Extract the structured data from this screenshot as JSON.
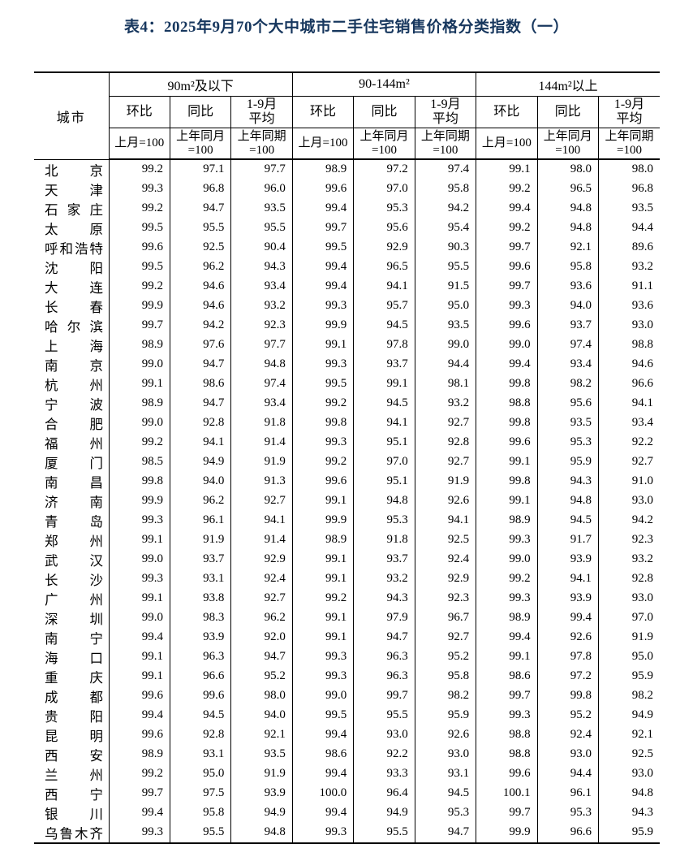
{
  "title": "表4：2025年9月70个大中城市二手住宅销售价格分类指数（一）",
  "table": {
    "city_header": "城市",
    "groups": [
      {
        "label": "90m²及以下"
      },
      {
        "label": "90-144m²"
      },
      {
        "label": "144m²以上"
      }
    ],
    "metric_headers": [
      "环比",
      "同比",
      "1-9月\n平均"
    ],
    "base_headers": [
      "上月=100",
      "上年同月\n=100",
      "上年同期\n=100"
    ],
    "rows": [
      {
        "city": "北京",
        "values": [
          "99.2",
          "97.1",
          "97.7",
          "98.9",
          "97.2",
          "97.4",
          "99.1",
          "98.0",
          "98.0"
        ]
      },
      {
        "city": "天津",
        "values": [
          "99.3",
          "96.8",
          "96.0",
          "99.6",
          "97.0",
          "95.8",
          "99.2",
          "96.5",
          "96.8"
        ]
      },
      {
        "city": "石家庄",
        "values": [
          "99.2",
          "94.7",
          "93.5",
          "99.4",
          "95.3",
          "94.2",
          "99.4",
          "94.8",
          "93.5"
        ]
      },
      {
        "city": "太原",
        "values": [
          "99.5",
          "95.5",
          "95.5",
          "99.7",
          "95.6",
          "95.4",
          "99.2",
          "94.8",
          "94.4"
        ]
      },
      {
        "city": "呼和浩特",
        "values": [
          "99.6",
          "92.5",
          "90.4",
          "99.5",
          "92.9",
          "90.3",
          "99.7",
          "92.1",
          "89.6"
        ]
      },
      {
        "city": "沈阳",
        "values": [
          "99.5",
          "96.2",
          "94.3",
          "99.4",
          "96.5",
          "95.5",
          "99.6",
          "95.8",
          "93.2"
        ]
      },
      {
        "city": "大连",
        "values": [
          "99.2",
          "94.6",
          "93.4",
          "99.4",
          "94.1",
          "91.5",
          "99.7",
          "93.6",
          "91.1"
        ]
      },
      {
        "city": "长春",
        "values": [
          "99.9",
          "94.6",
          "93.2",
          "99.3",
          "95.7",
          "95.0",
          "99.3",
          "94.0",
          "93.6"
        ]
      },
      {
        "city": "哈尔滨",
        "values": [
          "99.7",
          "94.2",
          "92.3",
          "99.9",
          "94.5",
          "93.5",
          "99.6",
          "93.7",
          "93.0"
        ]
      },
      {
        "city": "上海",
        "values": [
          "98.9",
          "97.6",
          "97.7",
          "99.1",
          "97.8",
          "99.0",
          "99.0",
          "97.4",
          "98.8"
        ]
      },
      {
        "city": "南京",
        "values": [
          "99.0",
          "94.7",
          "94.8",
          "99.3",
          "93.7",
          "94.4",
          "99.4",
          "93.4",
          "94.6"
        ]
      },
      {
        "city": "杭州",
        "values": [
          "99.1",
          "98.6",
          "97.4",
          "99.5",
          "99.1",
          "98.1",
          "99.8",
          "98.2",
          "96.6"
        ]
      },
      {
        "city": "宁波",
        "values": [
          "98.9",
          "94.7",
          "93.4",
          "99.2",
          "94.5",
          "93.2",
          "98.8",
          "95.6",
          "94.1"
        ]
      },
      {
        "city": "合肥",
        "values": [
          "99.0",
          "92.8",
          "91.8",
          "99.8",
          "94.1",
          "92.7",
          "99.8",
          "93.5",
          "93.4"
        ]
      },
      {
        "city": "福州",
        "values": [
          "99.2",
          "94.1",
          "91.4",
          "99.3",
          "95.1",
          "92.8",
          "99.6",
          "95.3",
          "92.2"
        ]
      },
      {
        "city": "厦门",
        "values": [
          "98.5",
          "94.9",
          "91.9",
          "99.2",
          "97.0",
          "92.7",
          "99.1",
          "95.9",
          "92.7"
        ]
      },
      {
        "city": "南昌",
        "values": [
          "99.8",
          "94.0",
          "91.3",
          "99.6",
          "95.1",
          "91.9",
          "99.8",
          "94.3",
          "91.0"
        ]
      },
      {
        "city": "济南",
        "values": [
          "99.9",
          "96.2",
          "92.7",
          "99.1",
          "94.8",
          "92.6",
          "99.1",
          "94.8",
          "93.0"
        ]
      },
      {
        "city": "青岛",
        "values": [
          "99.3",
          "96.1",
          "94.1",
          "99.9",
          "95.3",
          "94.1",
          "98.9",
          "94.5",
          "94.2"
        ]
      },
      {
        "city": "郑州",
        "values": [
          "99.1",
          "91.9",
          "91.4",
          "98.9",
          "91.8",
          "92.5",
          "99.3",
          "91.7",
          "92.3"
        ]
      },
      {
        "city": "武汉",
        "values": [
          "99.0",
          "93.7",
          "92.9",
          "99.1",
          "93.7",
          "92.4",
          "99.0",
          "93.9",
          "93.2"
        ]
      },
      {
        "city": "长沙",
        "values": [
          "99.3",
          "93.1",
          "92.4",
          "99.1",
          "93.2",
          "92.9",
          "99.2",
          "94.1",
          "92.8"
        ]
      },
      {
        "city": "广州",
        "values": [
          "99.1",
          "93.8",
          "92.7",
          "99.2",
          "94.3",
          "92.3",
          "99.3",
          "93.9",
          "93.0"
        ]
      },
      {
        "city": "深圳",
        "values": [
          "99.0",
          "98.3",
          "96.2",
          "99.1",
          "97.9",
          "96.7",
          "98.9",
          "99.4",
          "97.0"
        ]
      },
      {
        "city": "南宁",
        "values": [
          "99.4",
          "93.9",
          "92.0",
          "99.1",
          "94.7",
          "92.7",
          "99.4",
          "92.6",
          "91.9"
        ]
      },
      {
        "city": "海口",
        "values": [
          "99.1",
          "96.3",
          "94.7",
          "99.3",
          "96.3",
          "95.2",
          "99.1",
          "97.8",
          "95.0"
        ]
      },
      {
        "city": "重庆",
        "values": [
          "99.1",
          "96.6",
          "95.2",
          "99.3",
          "96.3",
          "95.8",
          "98.6",
          "97.2",
          "95.9"
        ]
      },
      {
        "city": "成都",
        "values": [
          "99.6",
          "99.6",
          "98.0",
          "99.0",
          "99.7",
          "98.2",
          "99.7",
          "99.8",
          "98.2"
        ]
      },
      {
        "city": "贵阳",
        "values": [
          "99.4",
          "94.5",
          "94.0",
          "99.5",
          "95.5",
          "95.9",
          "99.3",
          "95.2",
          "94.9"
        ]
      },
      {
        "city": "昆明",
        "values": [
          "99.6",
          "92.8",
          "92.1",
          "99.4",
          "93.0",
          "92.6",
          "98.8",
          "92.4",
          "92.1"
        ]
      },
      {
        "city": "西安",
        "values": [
          "98.9",
          "93.1",
          "93.5",
          "98.6",
          "92.2",
          "93.0",
          "98.8",
          "93.0",
          "92.5"
        ]
      },
      {
        "city": "兰州",
        "values": [
          "99.2",
          "95.0",
          "91.9",
          "99.4",
          "93.3",
          "93.1",
          "99.6",
          "94.4",
          "93.0"
        ]
      },
      {
        "city": "西宁",
        "values": [
          "99.7",
          "97.5",
          "93.9",
          "100.0",
          "96.4",
          "94.5",
          "100.1",
          "96.1",
          "94.8"
        ]
      },
      {
        "city": "银川",
        "values": [
          "99.4",
          "95.8",
          "94.9",
          "99.4",
          "94.9",
          "95.3",
          "99.7",
          "95.3",
          "94.3"
        ]
      },
      {
        "city": "乌鲁木齐",
        "values": [
          "99.3",
          "95.5",
          "94.8",
          "99.3",
          "95.5",
          "94.7",
          "99.9",
          "96.6",
          "95.9"
        ]
      }
    ]
  }
}
